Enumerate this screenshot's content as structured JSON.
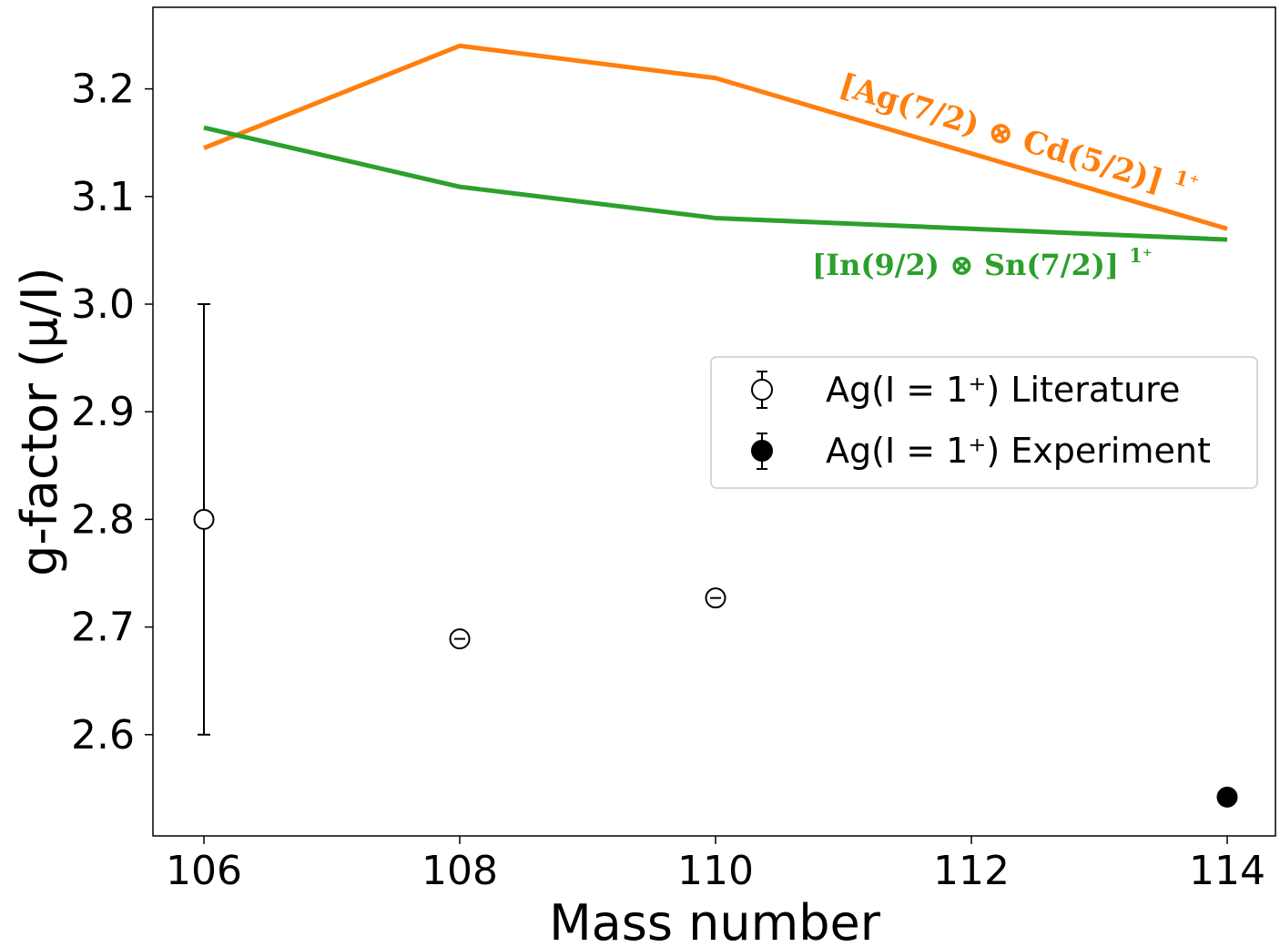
{
  "chart_data": {
    "type": "scatter",
    "xlabel": "Mass number",
    "ylabel": "g-factor (μ/I)",
    "xlim": [
      105.6,
      114.6
    ],
    "ylim": [
      2.505,
      3.275
    ],
    "xticks": [
      106,
      108,
      110,
      112,
      114
    ],
    "yticks": [
      2.6,
      2.7,
      2.8,
      2.9,
      3.0,
      3.1,
      3.2
    ],
    "series": [
      {
        "name": "[Ag(7/2) ⊗ Cd(5/2)]^1+",
        "kind": "line",
        "color": "#ff7f0e",
        "x": [
          106,
          108,
          110,
          114
        ],
        "y": [
          3.145,
          3.24,
          3.21,
          3.07
        ]
      },
      {
        "name": "[In(9/2) ⊗ Sn(7/2)]^1+",
        "kind": "line",
        "color": "#2ca02c",
        "x": [
          106,
          108,
          110,
          112,
          114
        ],
        "y": [
          3.164,
          3.109,
          3.08,
          3.07,
          3.06
        ]
      },
      {
        "name": "Ag(I = 1⁺) Literature",
        "kind": "errorbar",
        "marker": "open-circle",
        "color": "#000000",
        "x": [
          106,
          108,
          110
        ],
        "y": [
          2.8,
          2.689,
          2.727
        ],
        "yerr": [
          0.2,
          0.002,
          0.002
        ]
      },
      {
        "name": "Ag(I = 1⁺) Experiment",
        "kind": "errorbar",
        "marker": "filled-circle",
        "color": "#000000",
        "x": [
          114
        ],
        "y": [
          2.542
        ],
        "yerr": [
          0.0
        ]
      }
    ],
    "annotations": [
      {
        "text_main": "[Ag(7/2) ⊗ Cd(5/2)]",
        "text_sup": "1⁺",
        "color": "#ff7f0e"
      },
      {
        "text_main": "[In(9/2) ⊗ Sn(7/2)]",
        "text_sup": "1⁺",
        "color": "#2ca02c"
      }
    ],
    "legend": {
      "placement": "center-right",
      "entries": [
        {
          "label": "Ag(I = 1⁺) Literature",
          "marker": "open-circle"
        },
        {
          "label": "Ag(I = 1⁺) Experiment",
          "marker": "filled-circle"
        }
      ]
    },
    "grid": false
  }
}
